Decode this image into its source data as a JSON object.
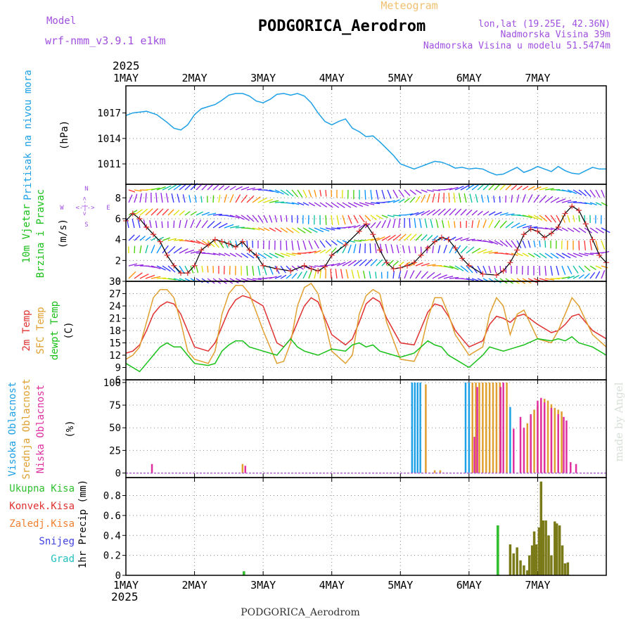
{
  "header": {
    "model_label": "Model",
    "model_value": "wrf-nmm_v3.9.1  e1km",
    "chart_type_label": "Meteogram",
    "station_title": "PODGORICA_Aerodrom",
    "coords": "lon,lat (19.25E, 42.36N)",
    "elevation": "Nadmorska Visina 39m",
    "model_elevation": "Nadmorska Visina u modelu 51.5474m",
    "year_top": "2025"
  },
  "footer": {
    "year_bottom": "2025",
    "station_caption": "PODGORICA_Aerodrom",
    "credit": "made by Angel"
  },
  "colors": {
    "pressure": "#1ea0e6",
    "wind_label": "#18c018",
    "wind_axis_label": "#a050e0",
    "temp2m": "#e03030",
    "sfc_temp": "#e0a030",
    "dewpt": "#18c018",
    "cloud_high": "#1ea0e6",
    "cloud_mid": "#e0a030",
    "cloud_low": "#e030a0",
    "precip_total": "#30c030",
    "precip_conv": "#e03030",
    "precip_frozen": "#f08030",
    "precip_snow": "#4040e0",
    "precip_hail": "#20c0c0",
    "precip_bar": "#7a7a18"
  },
  "chart_data": [
    {
      "type": "line",
      "name": "pressure",
      "ylabel_lines": [
        "Pritisak na nivou mora"
      ],
      "unit": "(hPa)",
      "ylim": [
        1008.6,
        1020.2
      ],
      "yticks": [
        1011,
        1014,
        1017
      ],
      "xticks": [
        "1MAY",
        "2MAY",
        "3MAY",
        "4MAY",
        "5MAY",
        "6MAY",
        "7MAY"
      ],
      "grid": true,
      "series": [
        {
          "x": [
            0,
            0.1,
            0.2,
            0.3,
            0.45,
            0.6,
            0.7,
            0.8,
            0.9,
            1.0,
            1.1,
            1.3,
            1.4,
            1.5,
            1.6,
            1.7,
            1.8,
            1.9,
            2.0,
            2.1,
            2.2,
            2.3,
            2.4,
            2.5,
            2.6,
            2.7,
            2.8,
            2.9,
            3.0,
            3.1,
            3.2,
            3.3,
            3.4,
            3.5,
            3.6,
            3.7,
            3.8,
            3.9,
            4.0,
            4.2,
            4.3,
            4.4,
            4.5,
            4.6,
            4.7,
            4.8,
            4.9,
            5.0,
            5.1,
            5.2,
            5.3,
            5.4,
            5.5,
            5.6,
            5.7,
            5.8,
            5.9,
            6.0,
            6.1,
            6.2,
            6.3,
            6.4,
            6.5,
            6.6,
            6.7,
            6.8,
            6.9,
            7.0
          ],
          "y": [
            1016.7,
            1017.0,
            1017.1,
            1017.2,
            1016.8,
            1015.9,
            1015.2,
            1015.0,
            1015.6,
            1016.8,
            1017.5,
            1018.0,
            1018.5,
            1019.1,
            1019.3,
            1019.3,
            1019.0,
            1018.4,
            1018.2,
            1018.6,
            1019.2,
            1019.3,
            1019.1,
            1019.3,
            1019.0,
            1018.2,
            1017.0,
            1016.0,
            1015.6,
            1016.0,
            1016.3,
            1015.2,
            1014.8,
            1014.2,
            1014.3,
            1013.6,
            1012.8,
            1012.0,
            1011.0,
            1010.4,
            1010.7,
            1011.0,
            1011.3,
            1011.2,
            1010.9,
            1010.5,
            1010.6,
            1010.4,
            1010.5,
            1010.4,
            1010.0,
            1009.7,
            1009.8,
            1010.2,
            1010.6,
            1010.0,
            1010.3,
            1010.7,
            1010.4,
            1010.1,
            1010.7,
            1010.2,
            1009.9,
            1009.8,
            1010.2,
            1010.6,
            1010.4,
            1010.4
          ]
        }
      ]
    },
    {
      "type": "line",
      "name": "wind",
      "ylabel_lines": [
        "10m Vjetar",
        "Brzina i Pravac"
      ],
      "unit": "(m/s)",
      "direction_axis": {
        "north": "N",
        "south": "S",
        "east": "E",
        "west": "W",
        "arrow": "<-|->"
      },
      "ylim": [
        0,
        9.3
      ],
      "yticks": [
        0,
        2,
        4,
        6,
        8
      ],
      "grid": true,
      "series": [
        {
          "name": "speed",
          "x": [
            0,
            0.1,
            0.2,
            0.3,
            0.4,
            0.5,
            0.6,
            0.7,
            0.8,
            0.9,
            1.0,
            1.1,
            1.2,
            1.3,
            1.4,
            1.5,
            1.6,
            1.7,
            1.8,
            1.9,
            2.0,
            2.2,
            2.4,
            2.6,
            2.7,
            2.8,
            2.9,
            3.0,
            3.2,
            3.4,
            3.5,
            3.6,
            3.7,
            3.8,
            3.9,
            4.0,
            4.1,
            4.2,
            4.3,
            4.4,
            4.5,
            4.6,
            4.7,
            4.8,
            4.9,
            5.0,
            5.2,
            5.4,
            5.5,
            5.6,
            5.7,
            5.8,
            5.9,
            6.0,
            6.1,
            6.2,
            6.3,
            6.4,
            6.5,
            6.6,
            6.7,
            6.8,
            6.9,
            7.0
          ],
          "y": [
            5.8,
            6.5,
            6.0,
            5.2,
            4.5,
            3.8,
            2.5,
            1.5,
            0.8,
            0.8,
            1.5,
            3.0,
            3.5,
            4.0,
            3.8,
            3.6,
            3.3,
            3.8,
            3.0,
            2.5,
            1.5,
            1.2,
            1.0,
            1.5,
            1.2,
            1.0,
            1.4,
            2.5,
            3.5,
            4.8,
            5.5,
            4.5,
            3.0,
            1.8,
            1.2,
            1.3,
            1.5,
            1.8,
            2.5,
            3.2,
            3.8,
            4.2,
            4.0,
            3.2,
            2.2,
            1.5,
            0.7,
            0.6,
            1.0,
            1.8,
            3.0,
            4.5,
            5.0,
            4.8,
            4.2,
            4.6,
            5.2,
            6.5,
            7.2,
            6.8,
            5.5,
            4.0,
            2.5,
            1.8
          ]
        }
      ]
    },
    {
      "type": "line",
      "name": "temperature",
      "ylabel_lines": [
        "2m Temp",
        "SFC Temp",
        "dewpt Temp"
      ],
      "unit": "(C)",
      "ylim": [
        6,
        30
      ],
      "yticks": [
        6,
        9,
        12,
        15,
        18,
        21,
        24,
        27,
        30
      ],
      "grid": true,
      "series": [
        {
          "name": "2m Temp",
          "x": [
            0,
            0.1,
            0.2,
            0.3,
            0.4,
            0.5,
            0.6,
            0.7,
            0.8,
            0.9,
            1.0,
            1.2,
            1.3,
            1.4,
            1.5,
            1.6,
            1.7,
            1.8,
            2.0,
            2.2,
            2.3,
            2.4,
            2.5,
            2.6,
            2.7,
            2.8,
            3.0,
            3.2,
            3.3,
            3.4,
            3.5,
            3.6,
            3.7,
            3.8,
            4.0,
            4.2,
            4.3,
            4.4,
            4.5,
            4.6,
            4.7,
            4.8,
            5.0,
            5.2,
            5.3,
            5.4,
            5.5,
            5.6,
            5.7,
            5.8,
            6.0,
            6.2,
            6.3,
            6.4,
            6.5,
            6.6,
            6.8,
            7.0
          ],
          "y": [
            12.5,
            13.0,
            14.5,
            18.0,
            22.0,
            24.0,
            25.0,
            24.5,
            22.0,
            18.0,
            14.0,
            13.0,
            15.0,
            19.0,
            23.0,
            25.5,
            26.5,
            26.0,
            24.0,
            15.0,
            14.0,
            16.0,
            20.0,
            24.0,
            26.0,
            25.0,
            17.0,
            14.5,
            16.0,
            20.0,
            24.5,
            26.0,
            25.0,
            21.0,
            15.0,
            14.5,
            18.5,
            22.5,
            24.5,
            24.0,
            21.5,
            18.0,
            14.0,
            15.5,
            19.5,
            21.5,
            21.0,
            20.0,
            21.5,
            22.0,
            19.5,
            17.5,
            18.0,
            19.5,
            21.5,
            22.0,
            18.0,
            16.0
          ]
        },
        {
          "name": "SFC Temp",
          "x": [
            0,
            0.1,
            0.2,
            0.3,
            0.4,
            0.5,
            0.6,
            0.7,
            0.8,
            0.9,
            1.0,
            1.2,
            1.3,
            1.4,
            1.5,
            1.6,
            1.7,
            1.8,
            2.0,
            2.2,
            2.3,
            2.4,
            2.5,
            2.6,
            2.7,
            2.8,
            3.0,
            3.2,
            3.3,
            3.4,
            3.5,
            3.6,
            3.7,
            3.8,
            4.0,
            4.2,
            4.3,
            4.4,
            4.5,
            4.6,
            4.7,
            4.8,
            5.0,
            5.2,
            5.3,
            5.4,
            5.5,
            5.6,
            5.7,
            5.8,
            6.0,
            6.2,
            6.3,
            6.4,
            6.5,
            6.6,
            6.8,
            7.0
          ],
          "y": [
            11.0,
            12.0,
            14.0,
            20.0,
            26.0,
            28.0,
            28.0,
            26.0,
            20.0,
            13.0,
            11.0,
            10.0,
            13.0,
            22.0,
            27.0,
            29.0,
            29.0,
            27.0,
            18.0,
            10.0,
            10.5,
            15.0,
            24.0,
            28.5,
            29.5,
            27.0,
            13.0,
            10.0,
            12.0,
            22.0,
            26.5,
            28.0,
            27.0,
            20.0,
            11.0,
            10.5,
            14.0,
            21.0,
            26.0,
            26.0,
            22.0,
            17.0,
            12.0,
            14.0,
            22.0,
            26.0,
            24.0,
            17.0,
            22.0,
            23.0,
            16.0,
            15.0,
            18.0,
            22.0,
            26.0,
            24.0,
            17.0,
            14.0
          ]
        },
        {
          "name": "dewpt Temp",
          "x": [
            0,
            0.1,
            0.2,
            0.3,
            0.4,
            0.5,
            0.6,
            0.7,
            0.8,
            0.9,
            1.0,
            1.2,
            1.3,
            1.4,
            1.5,
            1.6,
            1.7,
            1.8,
            2.0,
            2.2,
            2.3,
            2.4,
            2.5,
            2.6,
            2.7,
            2.8,
            3.0,
            3.2,
            3.3,
            3.4,
            3.5,
            3.6,
            3.7,
            3.8,
            4.0,
            4.2,
            4.3,
            4.4,
            4.5,
            4.6,
            4.7,
            4.8,
            5.0,
            5.2,
            5.3,
            5.4,
            5.5,
            5.6,
            5.7,
            5.8,
            6.0,
            6.2,
            6.3,
            6.4,
            6.5,
            6.6,
            6.8,
            7.0
          ],
          "y": [
            10.0,
            9.0,
            8.0,
            10.0,
            12.0,
            14.0,
            15.0,
            14.0,
            14.0,
            12.0,
            10.0,
            9.5,
            10.0,
            13.0,
            14.5,
            15.5,
            15.5,
            14.0,
            13.0,
            12.0,
            14.0,
            16.0,
            14.0,
            13.0,
            12.5,
            12.0,
            13.5,
            13.0,
            14.5,
            15.0,
            14.0,
            14.5,
            13.0,
            12.5,
            11.5,
            12.5,
            14.0,
            15.5,
            14.5,
            14.0,
            12.0,
            11.0,
            9.0,
            12.0,
            14.0,
            13.5,
            13.0,
            13.5,
            14.0,
            14.5,
            16.0,
            15.5,
            16.0,
            15.5,
            16.5,
            15.0,
            14.0,
            12.0
          ]
        }
      ]
    },
    {
      "type": "bar",
      "name": "cloud_cover",
      "ylabel_lines": [
        "Visoka Oblacnost",
        "Srednja Oblacnost",
        "Niska Oblacnost"
      ],
      "unit": "(%)",
      "ylim": [
        -5,
        103
      ],
      "yticks": [
        0,
        25,
        50,
        75,
        100
      ],
      "grid": true,
      "series": [
        {
          "name": "Visoka Oblacnost",
          "x": [
            4.17,
            4.21,
            4.25,
            4.29,
            4.95,
            5.0,
            5.6
          ],
          "values": [
            100,
            100,
            100,
            100,
            100,
            100,
            73
          ]
        },
        {
          "name": "Srednja Oblacnost",
          "x": [
            1.7,
            4.37,
            4.5,
            4.58,
            5.05,
            5.1,
            5.15,
            5.2,
            5.25,
            5.3,
            5.35,
            5.4,
            5.45,
            5.55,
            5.85,
            5.9,
            5.95,
            6.0,
            6.05,
            6.1,
            6.15,
            6.2,
            6.25,
            6.3,
            6.35
          ],
          "values": [
            10,
            98,
            3,
            3,
            100,
            100,
            100,
            100,
            100,
            100,
            100,
            100,
            100,
            100,
            55,
            62,
            70,
            75,
            80,
            82,
            80,
            76,
            72,
            70,
            68
          ]
        },
        {
          "name": "Niska Oblacnost",
          "x": [
            0.38,
            1.74,
            5.08,
            5.12,
            5.46,
            5.5,
            5.65,
            5.75,
            5.8,
            5.9,
            6.0,
            6.05,
            6.1,
            6.2,
            6.3,
            6.38,
            6.42,
            6.48,
            6.56
          ],
          "values": [
            10,
            8,
            40,
            95,
            95,
            100,
            49,
            62,
            50,
            65,
            80,
            83,
            78,
            72,
            65,
            62,
            58,
            12,
            10
          ]
        }
      ]
    },
    {
      "type": "bar",
      "name": "precipitation",
      "ylabel_lines": [
        "1hr Precip (mm)"
      ],
      "legend": [
        "Ukupna Kisa",
        "Konvek.Kisa",
        "Zaledj.Kisa",
        "Snijeg",
        "Grad"
      ],
      "ylim": [
        0,
        0.98
      ],
      "yticks": [
        0,
        0.2,
        0.4,
        0.6,
        0.8
      ],
      "grid": true,
      "series": [
        {
          "name": "Ukupna Kisa",
          "x": [
            1.72,
            5.42,
            5.6,
            5.65,
            5.7,
            5.75,
            5.8,
            5.85,
            5.88,
            5.92,
            5.95,
            5.98,
            6.02,
            6.05,
            6.08,
            6.12,
            6.16,
            6.2,
            6.25,
            6.28,
            6.32,
            6.36,
            6.4,
            6.44
          ],
          "values": [
            0.04,
            0.5,
            0.31,
            0.22,
            0.28,
            0.15,
            0.1,
            0.05,
            0.2,
            0.3,
            0.44,
            0.31,
            0.48,
            0.94,
            0.55,
            0.55,
            0.4,
            0.2,
            0.54,
            0.52,
            0.5,
            0.3,
            0.12,
            0.13
          ]
        }
      ]
    }
  ],
  "xaxis": {
    "ticks": [
      "1MAY",
      "2MAY",
      "3MAY",
      "4MAY",
      "5MAY",
      "6MAY",
      "7MAY"
    ]
  }
}
